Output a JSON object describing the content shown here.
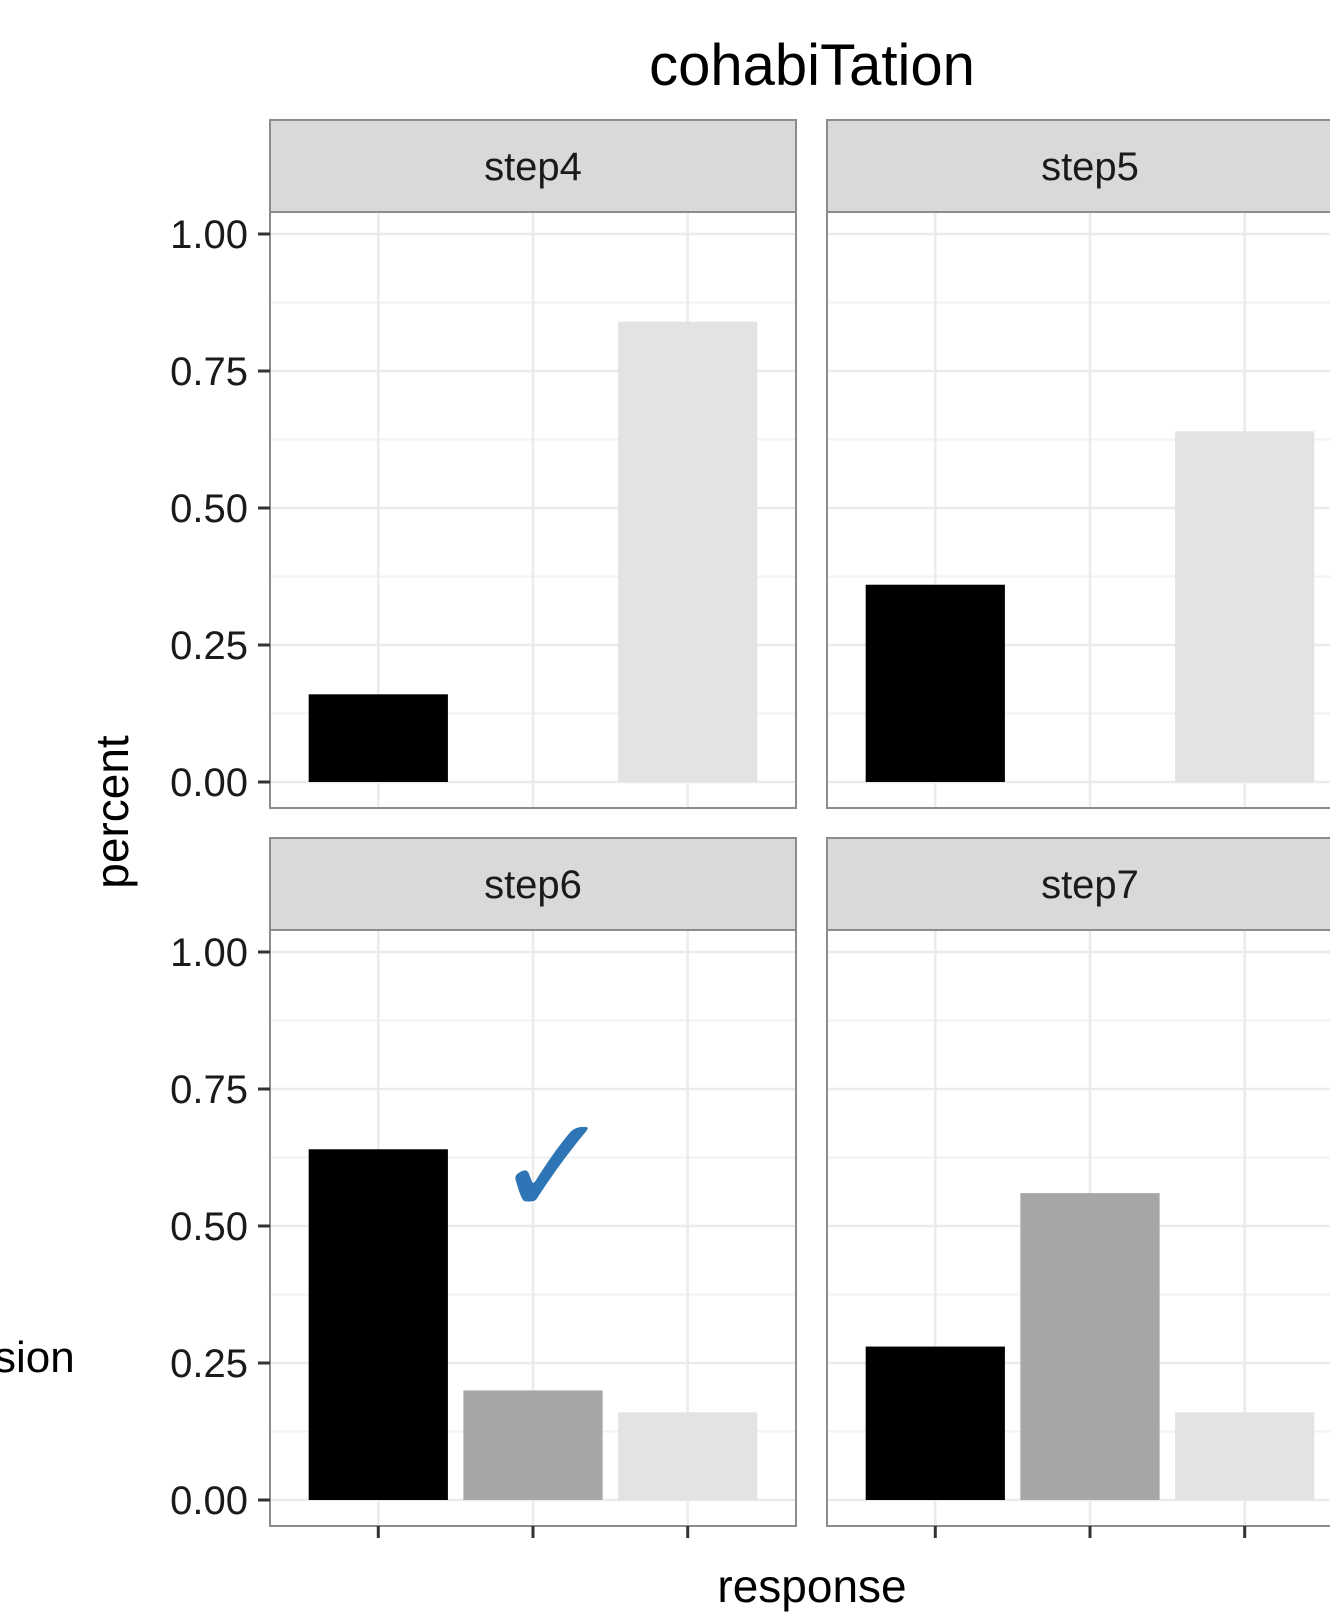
{
  "chart_data": {
    "type": "bar",
    "title": "cohabiTation",
    "xlabel": "response",
    "ylabel": "percent",
    "ylim": [
      0,
      1.05
    ],
    "yticks": [
      "0.00",
      "0.25",
      "0.50",
      "0.75",
      "1.00"
    ],
    "x_categories": 3,
    "bar_colors": [
      "#000000",
      "#a6a6a6",
      "#e3e3e3"
    ],
    "legend_title_fragment": "sion",
    "facets": [
      {
        "name": "step4",
        "values": [
          0.16,
          0,
          0.84
        ]
      },
      {
        "name": "step5",
        "values": [
          0.36,
          0,
          0.64
        ]
      },
      {
        "name": "step6",
        "values": [
          0.64,
          0.2,
          0.16
        ],
        "checkmark": true
      },
      {
        "name": "step7",
        "values": [
          0.28,
          0.56,
          0.16
        ]
      }
    ]
  },
  "annotations": {
    "checkmark_symbol": "✓",
    "checkmark_color": "#2e75b6"
  }
}
